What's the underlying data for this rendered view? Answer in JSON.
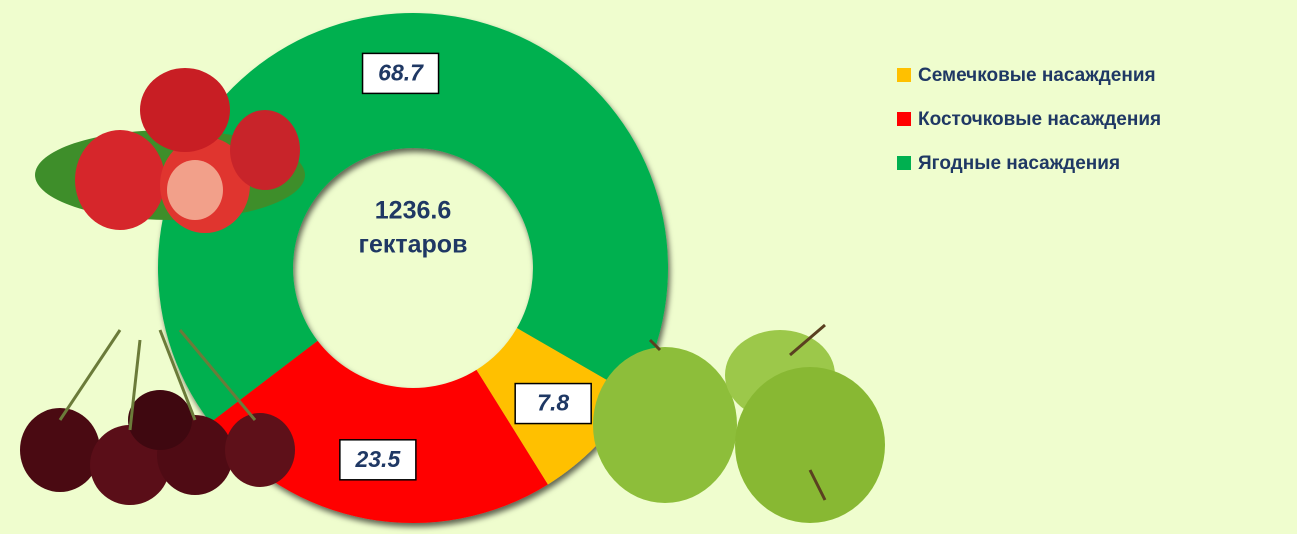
{
  "chart_data": {
    "type": "donut",
    "center_value": 1236.6,
    "center_unit": "гектаров",
    "categories": [
      "Семечковые насаждения",
      "Косточковые насаждения",
      "Ягодные насаждения"
    ],
    "values": [
      7.8,
      23.5,
      68.7
    ],
    "colors": [
      "#FFC000",
      "#FF0000",
      "#00B050"
    ],
    "legend": "top-right"
  }
}
